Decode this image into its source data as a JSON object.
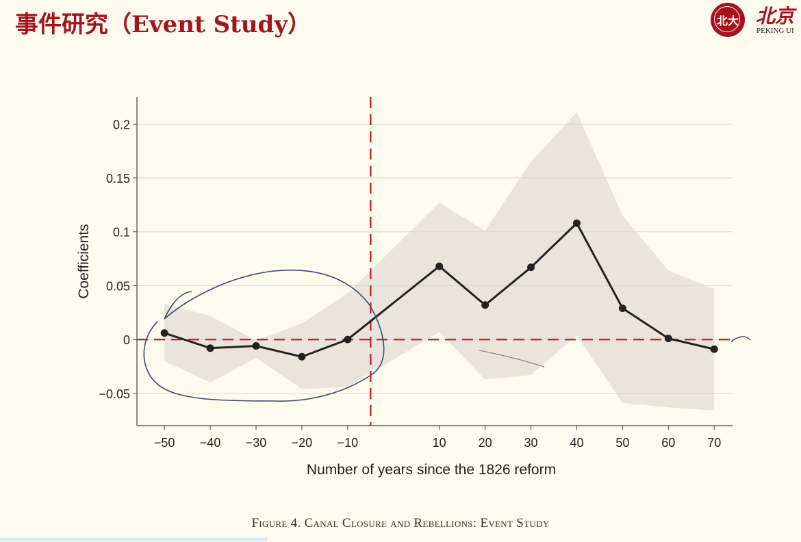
{
  "slide": {
    "title": "事件研究（Event Study）"
  },
  "logo": {
    "seal_text": "北大",
    "text_cn": "北京",
    "text_en": "PEKING UI"
  },
  "caption": "Figure 4.  Canal Closure and Rebellions: Event Study",
  "colors": {
    "title": "#a3141e",
    "line": "#222222",
    "band": "#e9e5dc",
    "reference": "#c62828",
    "annotation": "#3a4a70"
  },
  "chart_data": {
    "type": "line",
    "title": "",
    "xlabel": "Number of years since the 1826 reform",
    "ylabel": "Coefficients",
    "xlim": [
      -56,
      74
    ],
    "ylim": [
      -0.08,
      0.225
    ],
    "xticks": [
      -50,
      -40,
      -30,
      -20,
      -10,
      10,
      20,
      30,
      40,
      50,
      60,
      70
    ],
    "xtick_labels": [
      "−50",
      "−40",
      "−30",
      "−20",
      "−10",
      "10",
      "20",
      "30",
      "40",
      "50",
      "60",
      "70"
    ],
    "yticks": [
      -0.05,
      0,
      0.05,
      0.1,
      0.15,
      0.2
    ],
    "ytick_labels": [
      "−0.05",
      "0",
      "0.05",
      "0.1",
      "0.15",
      "0.2"
    ],
    "grid": true,
    "reform_line_x": -5,
    "zero_line_y": 0,
    "series": [
      {
        "x": [
          -50,
          -40,
          -30,
          -20,
          -10,
          10,
          20,
          30,
          40,
          50,
          60,
          70
        ],
        "y": [
          0.006,
          -0.008,
          -0.006,
          -0.016,
          0.0,
          0.068,
          0.032,
          0.067,
          0.108,
          0.029,
          0.001,
          -0.009
        ],
        "ci_upper": [
          0.033,
          0.022,
          -0.001,
          0.015,
          0.043,
          0.127,
          0.101,
          0.165,
          0.211,
          0.115,
          0.064,
          0.047
        ],
        "ci_lower": [
          -0.02,
          -0.04,
          -0.017,
          -0.046,
          -0.044,
          0.007,
          -0.037,
          -0.033,
          0.004,
          -0.059,
          -0.063,
          -0.066
        ]
      }
    ]
  }
}
